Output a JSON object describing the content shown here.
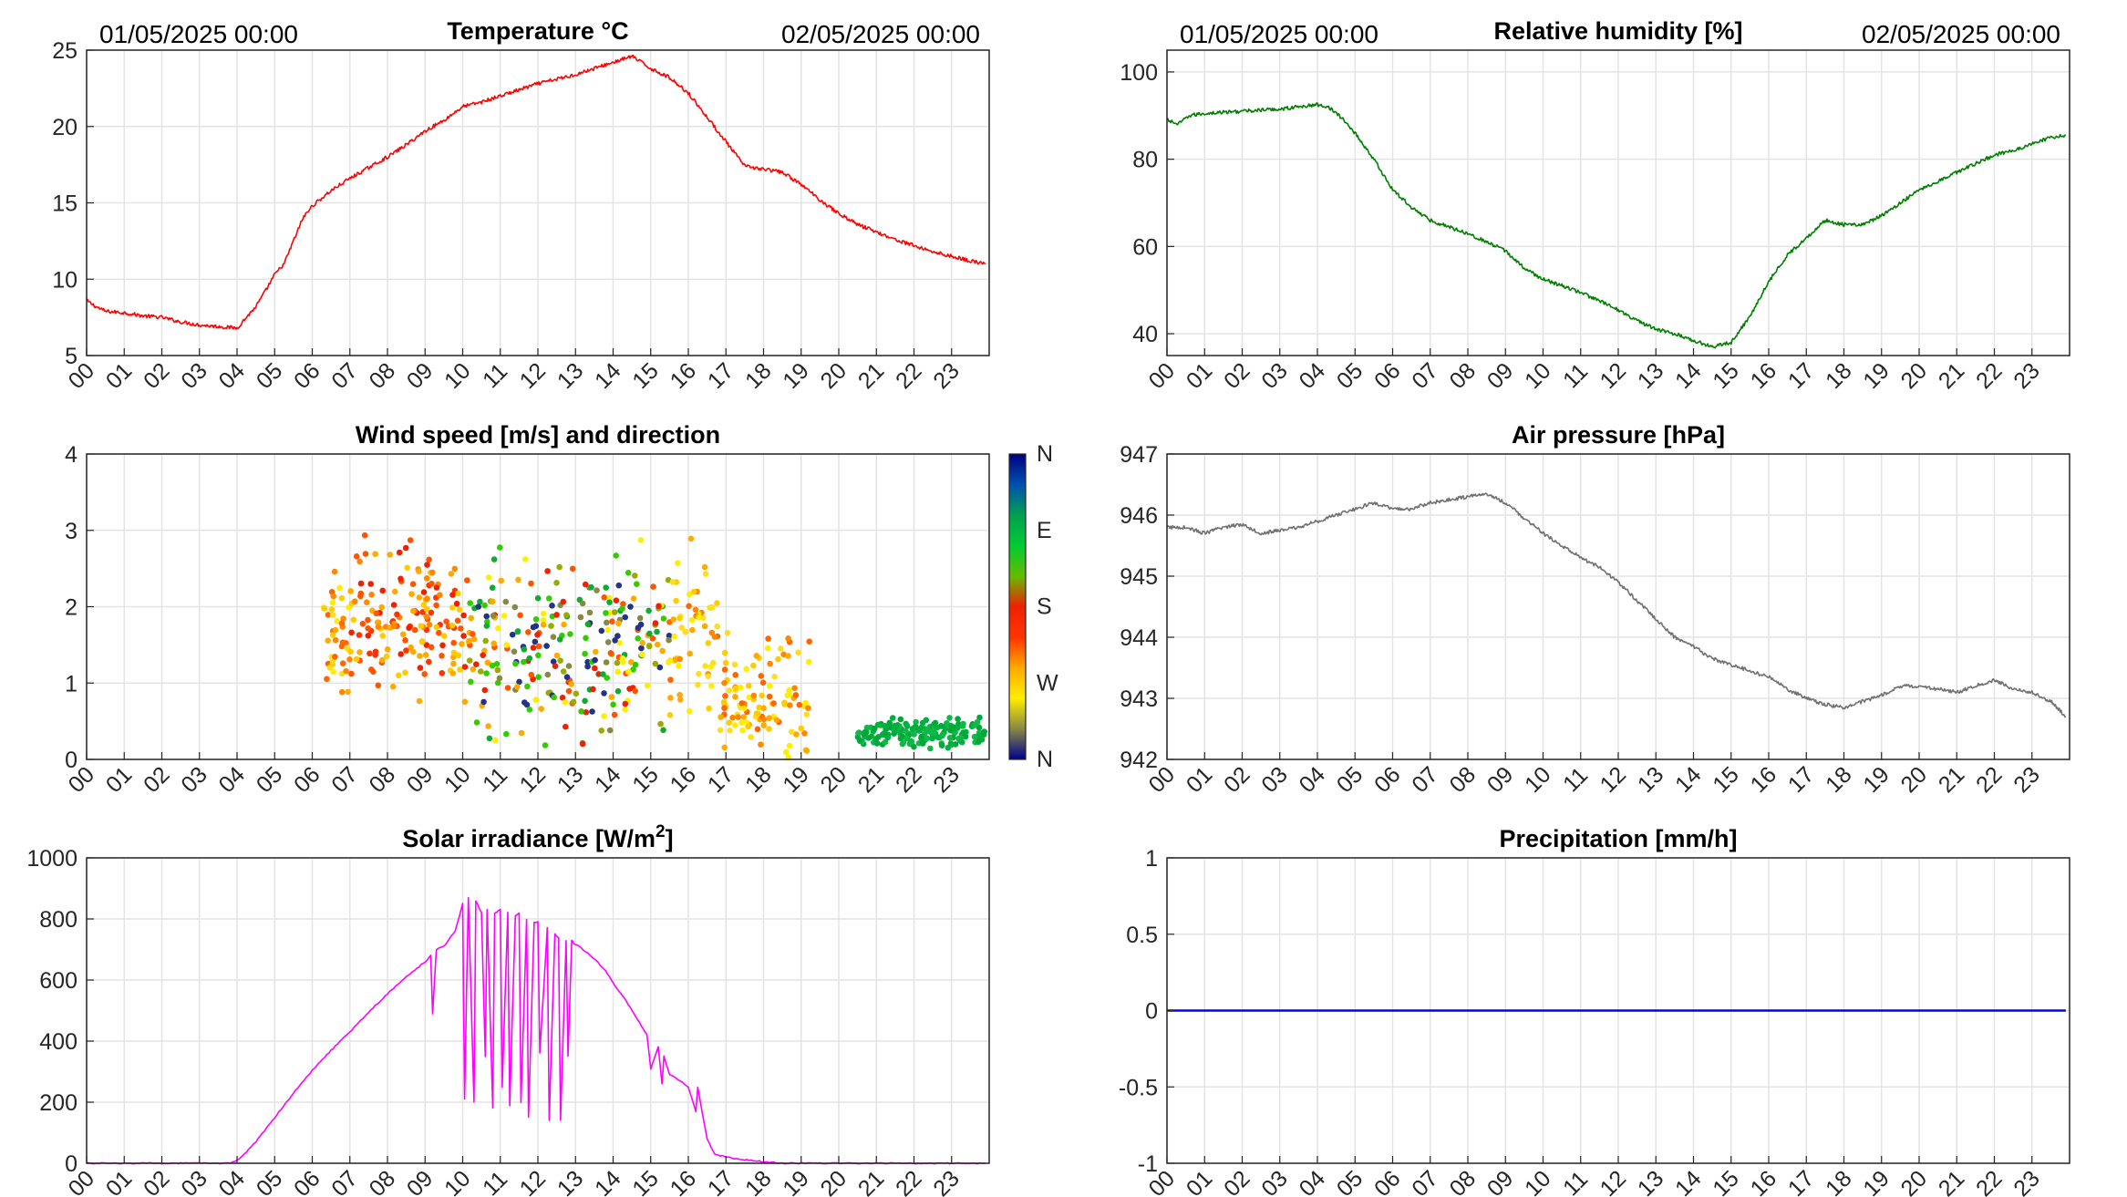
{
  "chart_data": [
    {
      "type": "line",
      "title": "Temperature °C",
      "subtitle_left": "01/05/2025 00:00",
      "subtitle_right": "02/05/2025 00:00",
      "xlabel": "",
      "ylabel": "",
      "x_ticks": [
        "00",
        "01",
        "02",
        "03",
        "04",
        "05",
        "06",
        "07",
        "08",
        "09",
        "10",
        "11",
        "12",
        "13",
        "14",
        "15",
        "16",
        "17",
        "18",
        "19",
        "20",
        "21",
        "22",
        "23"
      ],
      "y_ticks": [
        "5",
        "10",
        "15",
        "20",
        "25"
      ],
      "xlim": [
        0,
        24
      ],
      "ylim": [
        5,
        25
      ],
      "grid": true,
      "color": "#ff0000",
      "series": [
        {
          "x": [
            0,
            0.25,
            0.5,
            1,
            1.5,
            2,
            2.5,
            3,
            3.5,
            4,
            4.25,
            4.5,
            4.75,
            5,
            5.25,
            5.5,
            5.75,
            6,
            6.5,
            7,
            7.5,
            8,
            8.5,
            9,
            9.5,
            10,
            10.5,
            11,
            11.5,
            12,
            12.5,
            13,
            13.5,
            14,
            14.5,
            15,
            15.5,
            16,
            16.5,
            17,
            17.5,
            18,
            18.5,
            19,
            19.5,
            20,
            20.5,
            21,
            21.5,
            22,
            22.5,
            23,
            23.5,
            23.9
          ],
          "y": [
            8.6,
            8.2,
            7.9,
            7.8,
            7.6,
            7.5,
            7.2,
            7.0,
            6.9,
            6.8,
            7.5,
            8.2,
            9.2,
            10.3,
            11.0,
            12.5,
            14.0,
            14.8,
            15.8,
            16.6,
            17.3,
            18.0,
            18.8,
            19.7,
            20.4,
            21.3,
            21.6,
            22.0,
            22.4,
            22.8,
            23.1,
            23.4,
            23.8,
            24.2,
            24.6,
            23.8,
            23.2,
            22.2,
            20.6,
            19.0,
            17.4,
            17.2,
            17.0,
            16.2,
            15.2,
            14.3,
            13.6,
            13.1,
            12.6,
            12.2,
            11.8,
            11.5,
            11.2,
            11.0
          ]
        }
      ]
    },
    {
      "type": "line",
      "title": "Relative humidity [%]",
      "subtitle_left": "01/05/2025 00:00",
      "subtitle_right": "02/05/2025 00:00",
      "xlabel": "",
      "ylabel": "",
      "x_ticks": [
        "00",
        "01",
        "02",
        "03",
        "04",
        "05",
        "06",
        "07",
        "08",
        "09",
        "10",
        "11",
        "12",
        "13",
        "14",
        "15",
        "16",
        "17",
        "18",
        "19",
        "20",
        "21",
        "22",
        "23"
      ],
      "y_ticks": [
        "40",
        "60",
        "80",
        "100"
      ],
      "xlim": [
        0,
        24
      ],
      "ylim": [
        35,
        105
      ],
      "grid": true,
      "color": "#007f00",
      "series": [
        {
          "x": [
            0,
            0.3,
            0.6,
            1,
            2,
            3,
            3.5,
            4,
            4.3,
            4.7,
            5,
            5.5,
            6,
            6.5,
            7,
            7.5,
            8,
            8.5,
            9,
            9.5,
            10,
            10.5,
            11,
            11.5,
            12,
            12.5,
            13,
            13.5,
            14,
            14.5,
            15,
            15.5,
            16,
            16.5,
            17,
            17.5,
            18,
            18.5,
            19,
            19.5,
            20,
            20.5,
            21,
            21.5,
            22,
            22.5,
            23,
            23.5,
            23.9
          ],
          "y": [
            89,
            88,
            90,
            90.5,
            91,
            91.5,
            92,
            92.5,
            92,
            89,
            86,
            80,
            73,
            69,
            66,
            64.5,
            63,
            61,
            59,
            55,
            52.5,
            51,
            49.5,
            47.5,
            45.5,
            43,
            41,
            40,
            38.5,
            37,
            38,
            44,
            52,
            58,
            62,
            66,
            65,
            65,
            67,
            70,
            73,
            75,
            77,
            79,
            81,
            82,
            83.5,
            85,
            85.5
          ]
        }
      ]
    },
    {
      "type": "scatter",
      "title": "Wind speed [m/s] and direction",
      "xlabel": "",
      "ylabel": "",
      "x_ticks": [
        "00",
        "01",
        "02",
        "03",
        "04",
        "05",
        "06",
        "07",
        "08",
        "09",
        "10",
        "11",
        "12",
        "13",
        "14",
        "15",
        "16",
        "17",
        "18",
        "19",
        "20",
        "21",
        "22",
        "23"
      ],
      "y_ticks": [
        "0",
        "1",
        "2",
        "3",
        "4"
      ],
      "xlim": [
        0,
        24
      ],
      "ylim": [
        0,
        4
      ],
      "grid": true,
      "colorbar": {
        "labels": [
          "N",
          "W",
          "S",
          "E",
          "N"
        ],
        "colors": [
          "#00008f",
          "#0050b0",
          "#00a050",
          "#00cc33",
          "#33dd00",
          "#99cc00",
          "#cc6600",
          "#ee2200",
          "#ff3300",
          "#ff7700",
          "#ffaa00",
          "#ffee00",
          "#eedd00",
          "#88aa44",
          "#336699",
          "#000080"
        ]
      },
      "segments": [
        {
          "from": 6.3,
          "to": 7.0,
          "mean": 1.6,
          "spread": 0.6,
          "hue": "yellow-orange",
          "count": 40
        },
        {
          "from": 7.0,
          "to": 10.0,
          "mean": 1.8,
          "spread": 0.7,
          "hue": "orange-red",
          "count": 150
        },
        {
          "from": 10.0,
          "to": 13.5,
          "mean": 1.5,
          "spread": 0.9,
          "hue": "mixed",
          "count": 170
        },
        {
          "from": 13.5,
          "to": 15.5,
          "mean": 1.5,
          "spread": 0.9,
          "hue": "mixed",
          "count": 100
        },
        {
          "from": 15.5,
          "to": 16.8,
          "mean": 1.6,
          "spread": 0.8,
          "hue": "yellow-orange",
          "count": 60
        },
        {
          "from": 16.8,
          "to": 19.3,
          "mean": 0.7,
          "spread": 0.6,
          "hue": "yellow-orange",
          "count": 110
        },
        {
          "from": 20.5,
          "to": 23.9,
          "mean": 0.35,
          "spread": 0.15,
          "hue": "green",
          "count": 170
        }
      ]
    },
    {
      "type": "line",
      "title": "Air pressure [hPa]",
      "xlabel": "",
      "ylabel": "",
      "x_ticks": [
        "00",
        "01",
        "02",
        "03",
        "04",
        "05",
        "06",
        "07",
        "08",
        "09",
        "10",
        "11",
        "12",
        "13",
        "14",
        "15",
        "16",
        "17",
        "18",
        "19",
        "20",
        "21",
        "22",
        "23"
      ],
      "y_ticks": [
        "942",
        "943",
        "944",
        "945",
        "946",
        "947"
      ],
      "xlim": [
        0,
        24
      ],
      "ylim": [
        942,
        947
      ],
      "grid": true,
      "color": "#707070",
      "series": [
        {
          "x": [
            0,
            0.5,
            1,
            1.5,
            2,
            2.5,
            3,
            3.5,
            4,
            4.5,
            5,
            5.5,
            6,
            6.5,
            7,
            7.5,
            8,
            8.5,
            9,
            9.5,
            10,
            10.5,
            11,
            11.5,
            12,
            12.5,
            13,
            13.5,
            14,
            14.5,
            15,
            15.5,
            16,
            16.5,
            17,
            17.5,
            18,
            18.5,
            19,
            19.5,
            20,
            20.5,
            21,
            21.5,
            22,
            22.5,
            23,
            23.5,
            23.9
          ],
          "y": [
            945.8,
            945.8,
            945.7,
            945.8,
            945.85,
            945.7,
            945.75,
            945.8,
            945.9,
            946.0,
            946.1,
            946.2,
            946.1,
            946.1,
            946.2,
            946.25,
            946.3,
            946.35,
            946.2,
            945.95,
            945.7,
            945.5,
            945.3,
            945.15,
            944.9,
            944.6,
            944.3,
            944.0,
            943.85,
            943.65,
            943.55,
            943.45,
            943.35,
            943.15,
            943.0,
            942.9,
            942.85,
            942.95,
            943.05,
            943.2,
            943.2,
            943.15,
            943.1,
            943.2,
            943.3,
            943.15,
            943.1,
            942.95,
            942.7
          ]
        }
      ]
    },
    {
      "type": "line",
      "title": "Solar irradiance [W/m",
      "title_superscript": "2",
      "title_suffix": "]",
      "xlabel": "",
      "ylabel": "",
      "x_ticks": [
        "00",
        "01",
        "02",
        "03",
        "04",
        "05",
        "06",
        "07",
        "08",
        "09",
        "10",
        "11",
        "12",
        "13",
        "14",
        "15",
        "16",
        "17",
        "18",
        "19",
        "20",
        "21",
        "22",
        "23"
      ],
      "y_ticks": [
        "0",
        "200",
        "400",
        "600",
        "800",
        "1000"
      ],
      "xlim": [
        0,
        24
      ],
      "ylim": [
        0,
        1000
      ],
      "grid": true,
      "color": "#ff00ff",
      "series": [
        {
          "x": [
            0,
            1,
            2,
            3,
            3.8,
            4.0,
            4.2,
            4.5,
            5,
            5.5,
            6,
            6.5,
            7,
            7.5,
            8,
            8.5,
            9,
            9.15,
            9.2,
            9.3,
            9.5,
            9.8,
            10.0,
            10.05,
            10.15,
            10.3,
            10.35,
            10.5,
            10.6,
            10.65,
            10.8,
            10.85,
            11.0,
            11.05,
            11.2,
            11.25,
            11.4,
            11.5,
            11.55,
            11.7,
            11.75,
            11.9,
            12.0,
            12.05,
            12.25,
            12.3,
            12.45,
            12.55,
            12.6,
            12.75,
            12.8,
            12.9,
            12.95,
            13.1,
            13.3,
            13.5,
            13.8,
            14.0,
            14.3,
            14.6,
            14.9,
            15.0,
            15.2,
            15.3,
            15.35,
            15.5,
            15.8,
            16.0,
            16.2,
            16.25,
            16.35,
            16.5,
            16.7,
            17.0,
            17.5,
            18.0,
            18.5,
            19,
            20,
            21,
            22,
            23,
            23.9
          ],
          "y": [
            0,
            0,
            0,
            0,
            0,
            10,
            30,
            70,
            150,
            230,
            305,
            370,
            430,
            495,
            555,
            610,
            660,
            680,
            490,
            700,
            710,
            760,
            850,
            210,
            870,
            200,
            860,
            820,
            350,
            830,
            180,
            820,
            830,
            250,
            820,
            190,
            810,
            820,
            200,
            800,
            150,
            790,
            790,
            360,
            770,
            140,
            750,
            740,
            140,
            730,
            350,
            730,
            720,
            710,
            690,
            670,
            630,
            590,
            540,
            480,
            420,
            310,
            380,
            260,
            350,
            290,
            270,
            250,
            170,
            250,
            180,
            80,
            30,
            20,
            12,
            5,
            0,
            0,
            0,
            0,
            0,
            0,
            0
          ]
        }
      ]
    },
    {
      "type": "line",
      "title": "Precipitation [mm/h]",
      "xlabel": "",
      "ylabel": "",
      "x_ticks": [
        "00",
        "01",
        "02",
        "03",
        "04",
        "05",
        "06",
        "07",
        "08",
        "09",
        "10",
        "11",
        "12",
        "13",
        "14",
        "15",
        "16",
        "17",
        "18",
        "19",
        "20",
        "21",
        "22",
        "23"
      ],
      "y_ticks": [
        "-1",
        "-0.5",
        "0",
        "0.5",
        "1"
      ],
      "xlim": [
        0,
        24
      ],
      "ylim": [
        -1,
        1
      ],
      "grid": true,
      "color": "#0000ff",
      "series": [
        {
          "x": [
            0,
            23.9
          ],
          "y": [
            0,
            0
          ]
        }
      ]
    }
  ]
}
